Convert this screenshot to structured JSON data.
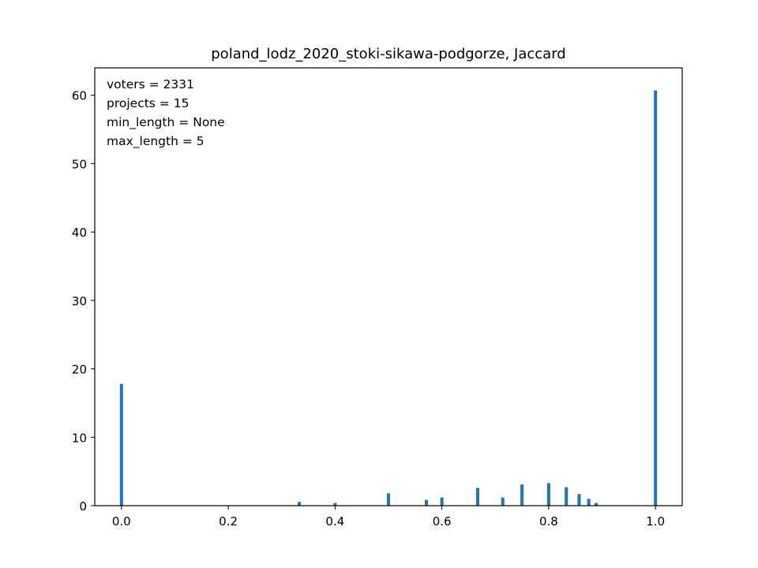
{
  "chart_data": {
    "type": "bar",
    "title": "poland_lodz_2020_stoki-sikawa-podgorze, Jaccard",
    "xlabel": "",
    "ylabel": "",
    "xlim": [
      -0.05,
      1.05
    ],
    "ylim": [
      0,
      64
    ],
    "xticks": [
      0.0,
      0.2,
      0.4,
      0.6,
      0.8,
      1.0
    ],
    "xtick_labels": [
      "0.0",
      "0.2",
      "0.4",
      "0.6",
      "0.8",
      "1.0"
    ],
    "yticks": [
      0,
      10,
      20,
      30,
      40,
      50,
      60
    ],
    "ytick_labels": [
      "0",
      "10",
      "20",
      "30",
      "40",
      "50",
      "60"
    ],
    "grid": false,
    "color": "#1f77b4",
    "bin_width": 0.01,
    "annotations": [
      "voters = 2331",
      "projects = 15",
      "min_length = None",
      "max_length = 5"
    ],
    "bars": [
      {
        "x": 0.0,
        "value": 17.8
      },
      {
        "x": 0.25,
        "value": 0.05
      },
      {
        "x": 0.333,
        "value": 0.55
      },
      {
        "x": 0.4,
        "value": 0.4
      },
      {
        "x": 0.5,
        "value": 1.8
      },
      {
        "x": 0.571,
        "value": 0.85
      },
      {
        "x": 0.6,
        "value": 1.2
      },
      {
        "x": 0.667,
        "value": 2.6
      },
      {
        "x": 0.714,
        "value": 1.2
      },
      {
        "x": 0.75,
        "value": 3.1
      },
      {
        "x": 0.8,
        "value": 3.3
      },
      {
        "x": 0.833,
        "value": 2.7
      },
      {
        "x": 0.857,
        "value": 1.7
      },
      {
        "x": 0.875,
        "value": 1.0
      },
      {
        "x": 0.889,
        "value": 0.4
      },
      {
        "x": 1.0,
        "value": 60.7
      }
    ]
  }
}
